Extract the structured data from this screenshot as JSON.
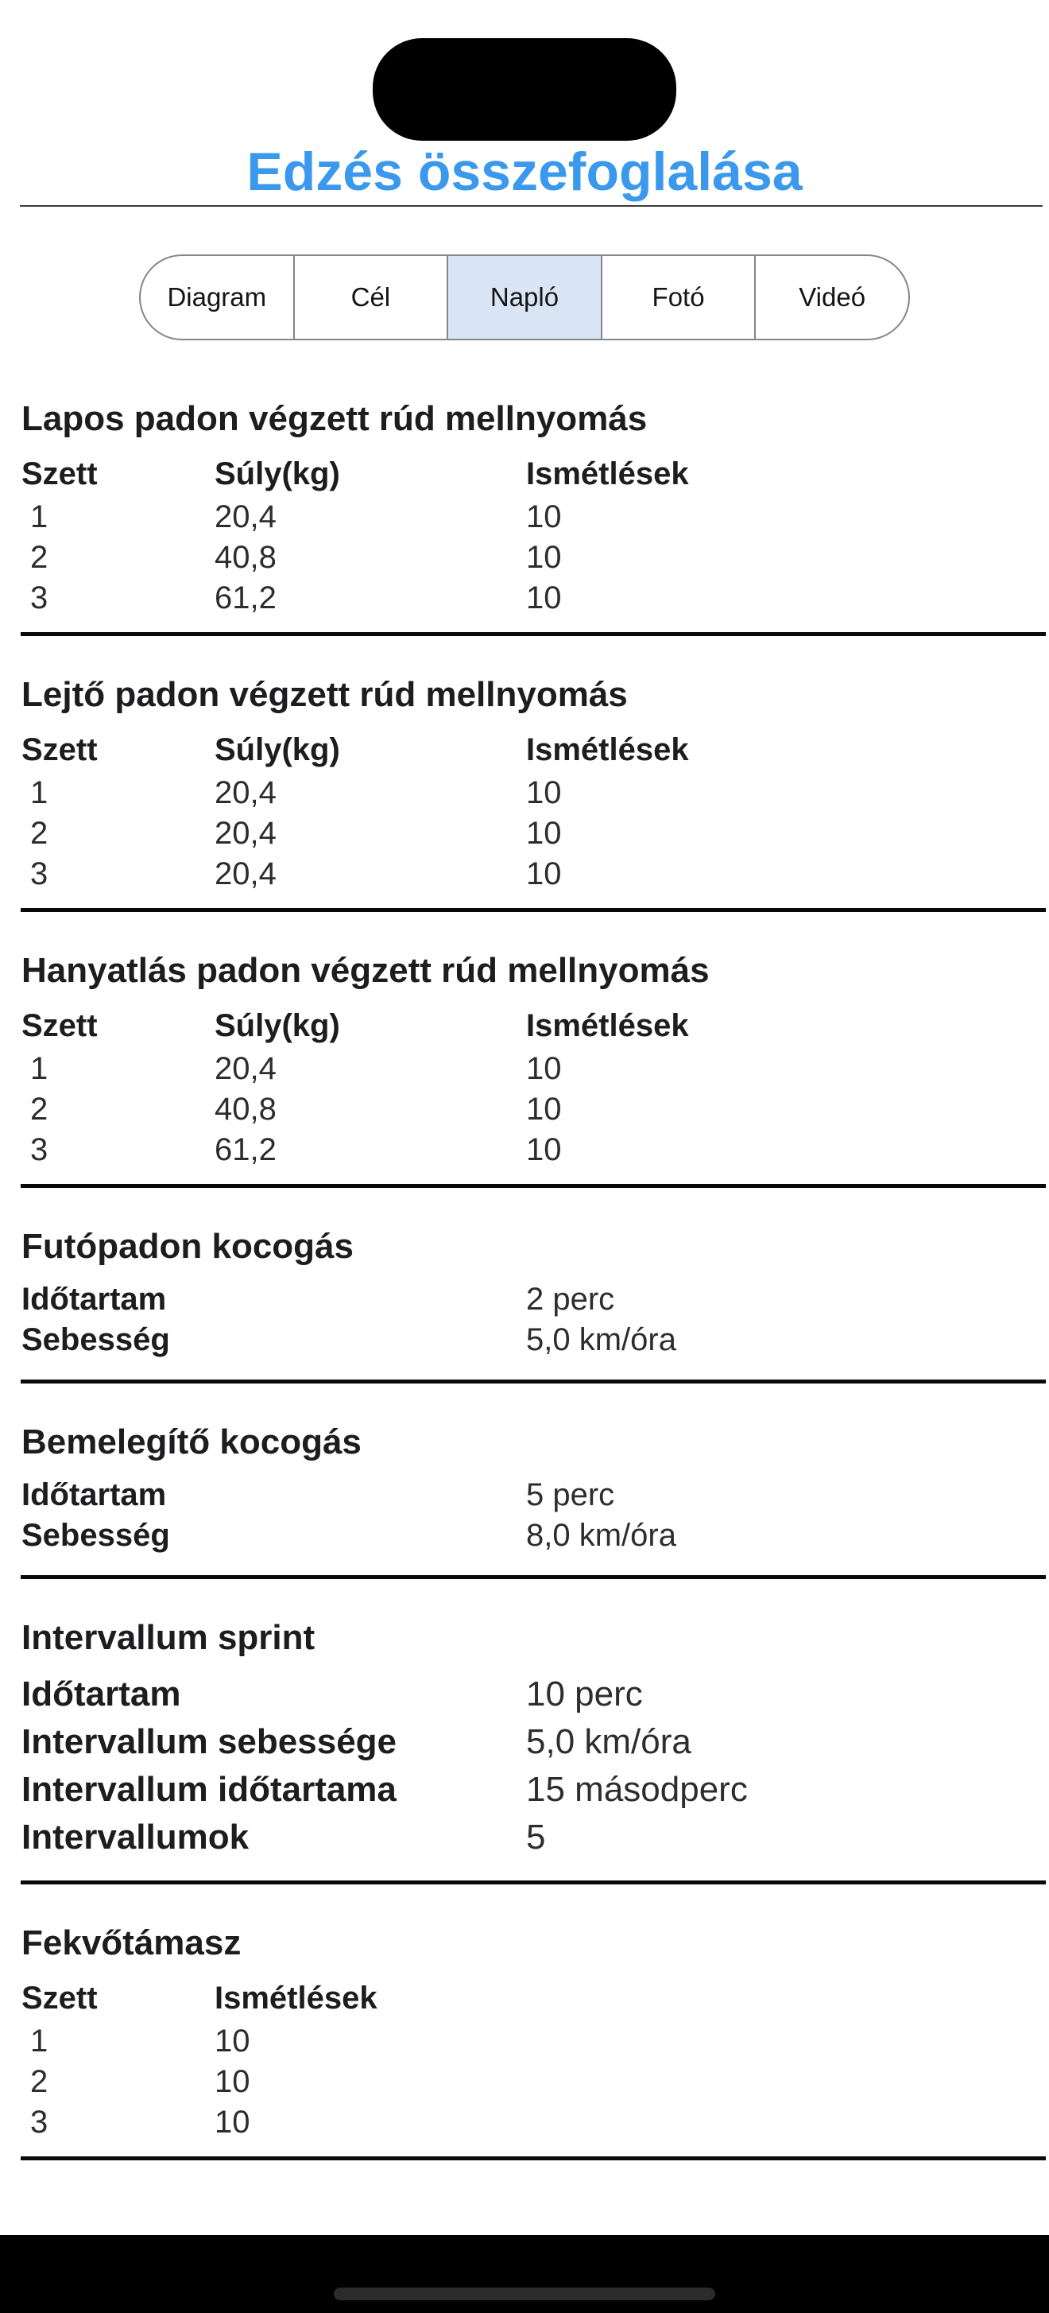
{
  "header": {
    "title": "Edzés összefoglalása",
    "accent_color": "#3b99ed"
  },
  "tabs": {
    "selected_index": 2,
    "selected_bg_color": "#d9e5f4",
    "border_color": "#85858a",
    "items": [
      {
        "label": "Diagram",
        "selected": false
      },
      {
        "label": "Cél",
        "selected": false
      },
      {
        "label": "Napló",
        "selected": true
      },
      {
        "label": "Fotó",
        "selected": false
      },
      {
        "label": "Videó",
        "selected": false
      }
    ]
  },
  "sections": [
    {
      "type": "table",
      "title": "Lapos padon végzett rúd mellnyomás",
      "columns": [
        "Szett",
        "Súly(kg)",
        "Ismétlések"
      ],
      "rows": [
        [
          "1",
          "20,4",
          "10"
        ],
        [
          "2",
          "40,8",
          "10"
        ],
        [
          "3",
          "61,2",
          "10"
        ]
      ]
    },
    {
      "type": "table",
      "title": "Lejtő padon végzett rúd mellnyomás",
      "columns": [
        "Szett",
        "Súly(kg)",
        "Ismétlések"
      ],
      "rows": [
        [
          "1",
          "20,4",
          "10"
        ],
        [
          "2",
          "20,4",
          "10"
        ],
        [
          "3",
          "20,4",
          "10"
        ]
      ]
    },
    {
      "type": "table",
      "title": "Hanyatlás padon végzett rúd mellnyomás",
      "columns": [
        "Szett",
        "Súly(kg)",
        "Ismétlések"
      ],
      "rows": [
        [
          "1",
          "20,4",
          "10"
        ],
        [
          "2",
          "40,8",
          "10"
        ],
        [
          "3",
          "61,2",
          "10"
        ]
      ]
    },
    {
      "type": "kv",
      "title": "Futópadon kocogás",
      "rows": [
        [
          "Időtartam",
          "2 perc"
        ],
        [
          "Sebesség",
          "5,0 km/óra"
        ]
      ]
    },
    {
      "type": "kv",
      "title": "Bemelegítő kocogás",
      "rows": [
        [
          "Időtartam",
          "5 perc"
        ],
        [
          "Sebesség",
          "8,0 km/óra"
        ]
      ]
    },
    {
      "type": "kv",
      "large": true,
      "title": "Intervallum sprint",
      "rows": [
        [
          "Időtartam",
          "10 perc"
        ],
        [
          "Intervallum sebessége",
          "5,0 km/óra"
        ],
        [
          "Intervallum időtartama",
          "15 másodperc"
        ],
        [
          "Intervallumok",
          "5"
        ]
      ]
    },
    {
      "type": "table",
      "title": "Fekvőtámasz",
      "columns": [
        "Szett",
        "Ismétlések"
      ],
      "rows": [
        [
          "1",
          "10"
        ],
        [
          "2",
          "10"
        ],
        [
          "3",
          "10"
        ]
      ]
    }
  ]
}
